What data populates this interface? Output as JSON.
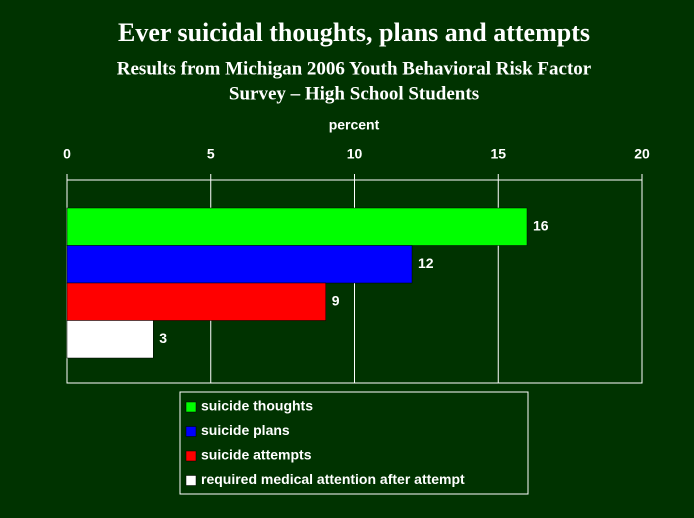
{
  "chart_data": {
    "type": "hbar",
    "title": "Ever suicidal thoughts, plans and attempts",
    "subtitle": [
      "Results from Michigan 2006 Youth Behavioral Risk Factor",
      "Survey – High School Students"
    ],
    "x_label": "percent",
    "categories": [
      null
    ],
    "series": [
      {
        "name": "suicide thoughts",
        "color": "#00ff00",
        "values": [
          16
        ]
      },
      {
        "name": "suicide plans",
        "color": "#0000ff",
        "values": [
          12
        ]
      },
      {
        "name": "suicide attempts",
        "color": "#ff0000",
        "values": [
          9
        ]
      },
      {
        "name": "required medical attention after attempt",
        "color": "#ffffff",
        "values": [
          3
        ]
      }
    ],
    "xlim": [
      0,
      20
    ],
    "xticks": [
      0,
      5,
      10,
      15,
      20
    ],
    "grid": true,
    "legend": "bottom"
  }
}
